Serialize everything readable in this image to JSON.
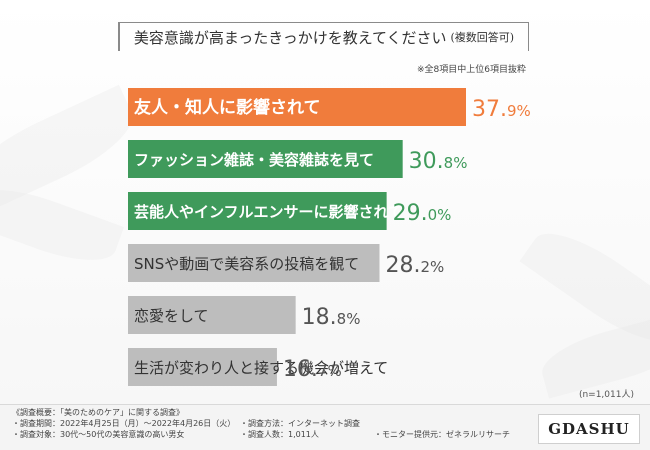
{
  "header": {
    "title": "美容意識が高まったきっかけを教えてください",
    "subtitle": "(複数回答可)",
    "note": "※全8項目中上位6項目抜粋"
  },
  "chart_data": {
    "type": "bar",
    "orientation": "horizontal",
    "categories": [
      "友人・知人に影響されて",
      "ファッション雑誌・美容雑誌を見て",
      "芸能人やインフルエンサーに影響されて",
      "SNSや動画で美容系の投稿を観て",
      "恋愛をして",
      "生活が変わり人と接する機会が増えて"
    ],
    "values": [
      37.9,
      30.8,
      29.0,
      28.2,
      18.8,
      16.7
    ],
    "unit": "%",
    "colors": [
      "#f07c3c",
      "#3f9a5b",
      "#3f9a5b",
      "#bdbdbd",
      "#bdbdbd",
      "#bdbdbd"
    ],
    "value_colors": [
      "#f07c3c",
      "#3f9a5b",
      "#3f9a5b",
      "#555555",
      "#555555",
      "#555555"
    ],
    "xlim": [
      0,
      37.9
    ],
    "grid": false,
    "legend": "none"
  },
  "sample_label": "(n=1,011人)",
  "footer": {
    "heading": "《調査概要：「美のためのケア」に関する調査》",
    "period": "・調査期間：2022年4月25日（月）～2022年4月26日（火）",
    "method": "・調査方法：インターネット調査",
    "target": "・調査対象：30代～50代の美容意識の高い男女",
    "count": "・調査人数：1,011人",
    "provider": "・モニター提供元：ゼネラルリサーチ"
  },
  "logo": "GDASHU"
}
